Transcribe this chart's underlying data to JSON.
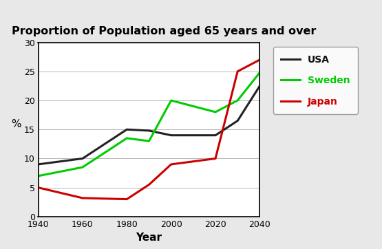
{
  "title": "Proportion of Population aged 65 years and over",
  "xlabel": "Year",
  "ylabel": "%",
  "xlim": [
    1940,
    2040
  ],
  "ylim": [
    0,
    30
  ],
  "xticks": [
    1940,
    1960,
    1980,
    2000,
    2020,
    2040
  ],
  "yticks": [
    0,
    5,
    10,
    15,
    20,
    25,
    30
  ],
  "usa": {
    "x": [
      1940,
      1960,
      1980,
      1990,
      2000,
      2020,
      2030,
      2040
    ],
    "y": [
      9.0,
      10.0,
      15.0,
      14.8,
      14.0,
      14.0,
      16.5,
      22.5
    ],
    "color": "#222222",
    "linewidth": 2.2,
    "label": "USA",
    "linestyle": "-"
  },
  "sweden": {
    "x": [
      1940,
      1960,
      1980,
      1990,
      2000,
      2020,
      2030,
      2040
    ],
    "y": [
      7.0,
      8.5,
      13.5,
      13.0,
      20.0,
      18.0,
      20.0,
      24.8
    ],
    "color": "#00cc00",
    "linewidth": 2.2,
    "label": "Sweden",
    "linestyle": "-"
  },
  "japan": {
    "x": [
      1940,
      1960,
      1980,
      1990,
      2000,
      2020,
      2030,
      2040
    ],
    "y": [
      5.0,
      3.2,
      3.0,
      5.5,
      9.0,
      10.0,
      25.0,
      27.0
    ],
    "color": "#cc0000",
    "linewidth": 2.2,
    "label": "Japan",
    "linestyle": "-"
  },
  "fig_bg_color": "#e8e8e8",
  "plot_bg": "#ffffff",
  "title_fontsize": 11.5,
  "legend_fontsize": 10,
  "axis_label_fontsize": 11,
  "tick_fontsize": 9
}
